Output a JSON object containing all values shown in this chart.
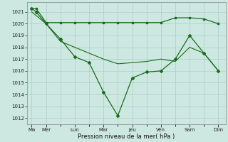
{
  "xlabel": "Pression niveau de la mer( hPa )",
  "bg_color": "#cce8e0",
  "line_color": "#1a6b1a",
  "grid_color": "#aacfc8",
  "ylim": [
    1011.5,
    1021.8
  ],
  "yticks": [
    1012,
    1013,
    1014,
    1015,
    1016,
    1017,
    1018,
    1019,
    1020,
    1021
  ],
  "xlim": [
    -0.3,
    13.5
  ],
  "xtick_positions": [
    0,
    1,
    3,
    5,
    7,
    9,
    11,
    13
  ],
  "xtick_labels": [
    "Ma",
    "Mer",
    "Lun",
    "Mar",
    "Jeu",
    "Ven",
    "Sam",
    "Dim"
  ],
  "minor_xticks": [
    0,
    1,
    2,
    3,
    4,
    5,
    6,
    7,
    8,
    9,
    10,
    11,
    12,
    13
  ],
  "line1_x": [
    0,
    0.3,
    1,
    2,
    3,
    4,
    5,
    6,
    7,
    8,
    9,
    10,
    11,
    12,
    13
  ],
  "line1_y": [
    1021.3,
    1021.3,
    1020.1,
    1020.1,
    1020.1,
    1020.1,
    1020.1,
    1020.1,
    1020.1,
    1020.1,
    1020.1,
    1020.5,
    1020.5,
    1020.4,
    1020.0
  ],
  "line2_x": [
    0,
    0.3,
    1,
    2,
    3,
    4,
    5,
    6,
    7,
    8,
    9,
    10,
    11,
    12,
    13
  ],
  "line2_y": [
    1021.3,
    1021.0,
    1020.0,
    1018.7,
    1017.2,
    1016.7,
    1014.2,
    1012.2,
    1015.4,
    1015.9,
    1016.0,
    1017.0,
    1019.0,
    1017.5,
    1016.0
  ],
  "line3_x": [
    0,
    1,
    2,
    3,
    4,
    5,
    6,
    7,
    8,
    9,
    10,
    11,
    12,
    13
  ],
  "line3_y": [
    1021.0,
    1020.0,
    1018.5,
    1018.0,
    1017.5,
    1017.0,
    1016.6,
    1016.7,
    1016.8,
    1017.0,
    1016.8,
    1018.0,
    1017.5,
    1016.0
  ]
}
